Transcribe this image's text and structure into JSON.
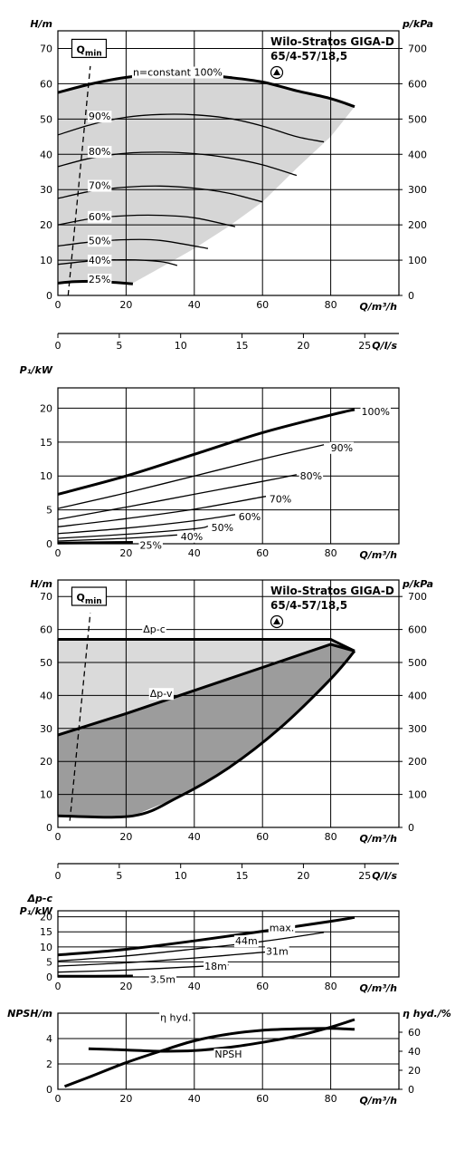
{
  "chart_data": [
    {
      "type": "line",
      "panel": "H-Q",
      "title": "Wilo-Stratos GIGA-D",
      "subtitle": "65/4-57/18,5",
      "ylabel": "H/m",
      "y2label": "p/kPa",
      "xlabel": "Q/m³/h",
      "xlim": [
        0,
        100
      ],
      "ylim": [
        0,
        75
      ],
      "y2lim": [
        0,
        750
      ],
      "xticks": [
        0,
        20,
        40,
        60,
        80
      ],
      "yticks": [
        0,
        10,
        20,
        30,
        40,
        50,
        60,
        70
      ],
      "y2ticks": [
        0,
        100,
        200,
        300,
        400,
        500,
        600,
        700
      ],
      "qmin_label": "Q",
      "qmin_sub": "min",
      "qmin_line": [
        [
          3,
          0
        ],
        [
          9.5,
          65
        ]
      ],
      "envelope": [
        [
          0,
          57.5
        ],
        [
          10,
          60
        ],
        [
          20,
          61.8
        ],
        [
          30,
          62.6
        ],
        [
          40,
          62.6
        ],
        [
          50,
          61.8
        ],
        [
          60,
          60.5
        ],
        [
          70,
          58
        ],
        [
          80,
          55.8
        ],
        [
          87,
          53.5
        ],
        [
          80,
          45
        ],
        [
          70,
          36
        ],
        [
          60,
          26.5
        ],
        [
          50,
          19.5
        ],
        [
          40,
          13.3
        ],
        [
          30,
          7.8
        ],
        [
          22,
          3.5
        ],
        [
          0,
          3.5
        ]
      ],
      "series": [
        {
          "name": "n=constant 100%",
          "bold": true,
          "x": [
            0,
            10,
            20,
            30,
            40,
            50,
            60,
            70,
            80,
            87
          ],
          "y": [
            57.5,
            60,
            61.8,
            62.6,
            62.6,
            61.8,
            60.5,
            58,
            55.8,
            53.5
          ]
        },
        {
          "name": "90%",
          "x": [
            0,
            10,
            20,
            30,
            40,
            50,
            60,
            70,
            78
          ],
          "y": [
            45.5,
            48.5,
            50.5,
            51.3,
            51.2,
            50.2,
            48,
            45,
            43.5
          ]
        },
        {
          "name": "80%",
          "x": [
            0,
            10,
            20,
            30,
            40,
            50,
            60,
            70
          ],
          "y": [
            36.5,
            39,
            40.3,
            40.6,
            40.2,
            39,
            37,
            34
          ]
        },
        {
          "name": "70%",
          "x": [
            0,
            10,
            20,
            30,
            40,
            50,
            60
          ],
          "y": [
            27.5,
            29.6,
            30.7,
            31,
            30.4,
            29,
            26.5
          ]
        },
        {
          "name": "60%",
          "x": [
            0,
            10,
            20,
            30,
            40,
            52
          ],
          "y": [
            20,
            21.8,
            22.6,
            22.7,
            22,
            19.5
          ]
        },
        {
          "name": "50%",
          "x": [
            0,
            10,
            20,
            30,
            44
          ],
          "y": [
            14,
            15.2,
            15.8,
            15.6,
            13.3
          ]
        },
        {
          "name": "40%",
          "x": [
            0,
            10,
            20,
            30,
            35
          ],
          "y": [
            8.8,
            9.8,
            10.1,
            9.6,
            8.5
          ]
        },
        {
          "name": "25%",
          "bold": true,
          "x": [
            0,
            5,
            10,
            15,
            22
          ],
          "y": [
            3.5,
            3.9,
            4,
            3.8,
            3.3
          ]
        }
      ]
    },
    {
      "type": "axis",
      "panel": "Q l/s",
      "xlabel": "Q/l/s",
      "xticks": [
        0,
        5,
        10,
        15,
        20,
        25
      ],
      "xlim": [
        0,
        27.78
      ]
    },
    {
      "type": "line",
      "panel": "P1-Q",
      "ylabel": "P₁/kW",
      "xlabel": "Q/m³/h",
      "xlim": [
        0,
        100
      ],
      "ylim": [
        0,
        23
      ],
      "xticks": [
        0,
        20,
        40,
        60,
        80
      ],
      "yticks": [
        0,
        5,
        10,
        15,
        20
      ],
      "series": [
        {
          "name": "100%",
          "bold": true,
          "x": [
            0,
            20,
            40,
            60,
            80,
            87
          ],
          "y": [
            7.3,
            10,
            13.2,
            16.4,
            19,
            19.8
          ]
        },
        {
          "name": "90%",
          "x": [
            0,
            20,
            40,
            60,
            78
          ],
          "y": [
            5.2,
            7.5,
            10,
            12.5,
            14.6
          ]
        },
        {
          "name": "80%",
          "x": [
            0,
            20,
            40,
            60,
            70
          ],
          "y": [
            3.6,
            5.4,
            7.3,
            9.2,
            10.2
          ]
        },
        {
          "name": "70%",
          "x": [
            0,
            20,
            40,
            61
          ],
          "y": [
            2.5,
            3.7,
            5.1,
            7
          ]
        },
        {
          "name": "60%",
          "x": [
            0,
            20,
            40,
            52
          ],
          "y": [
            1.5,
            2.3,
            3.4,
            4.3
          ]
        },
        {
          "name": "50%",
          "x": [
            0,
            20,
            40,
            44
          ],
          "y": [
            0.8,
            1.4,
            2.2,
            2.6
          ]
        },
        {
          "name": "40%",
          "x": [
            0,
            20,
            35
          ],
          "y": [
            0.4,
            0.8,
            1.3
          ]
        },
        {
          "name": "25%",
          "bold": true,
          "x": [
            0,
            22
          ],
          "y": [
            0.1,
            0.2
          ]
        }
      ]
    },
    {
      "type": "area",
      "panel": "H-Q control",
      "title": "Wilo-Stratos GIGA-D",
      "subtitle": "65/4-57/18,5",
      "ylabel": "H/m",
      "y2label": "p/kPa",
      "xlabel": "Q/m³/h",
      "xlim": [
        0,
        100
      ],
      "ylim": [
        0,
        75
      ],
      "y2lim": [
        0,
        750
      ],
      "xticks": [
        0,
        20,
        40,
        60,
        80
      ],
      "yticks": [
        0,
        10,
        20,
        30,
        40,
        50,
        60,
        70
      ],
      "y2ticks": [
        0,
        100,
        200,
        300,
        400,
        500,
        600,
        700
      ],
      "qmin_label": "Q",
      "qmin_sub": "min",
      "qmin_line": [
        [
          3.5,
          2
        ],
        [
          9.5,
          65
        ]
      ],
      "dpc_label": "Δp-c",
      "dpv_label": "Δp-v",
      "dpc": {
        "x": [
          0,
          80,
          82,
          87
        ],
        "y": [
          57,
          57,
          56,
          53.5
        ]
      },
      "dpv": {
        "x": [
          0,
          20,
          40,
          60,
          80,
          87
        ],
        "y": [
          28,
          34.5,
          41.5,
          48.5,
          55.5,
          53.5
        ]
      },
      "lower": {
        "x": [
          0,
          22,
          35,
          50,
          65,
          80,
          87
        ],
        "y": [
          3.5,
          3.5,
          9,
          18,
          30,
          45,
          53.5
        ]
      }
    },
    {
      "type": "axis",
      "panel": "Q l/s 2",
      "xlabel": "Q/l/s",
      "xticks": [
        0,
        5,
        10,
        15,
        20,
        25
      ],
      "xlim": [
        0,
        27.78
      ]
    },
    {
      "type": "line",
      "panel": "P1-Q control",
      "ylabel_top": "Δp-c",
      "ylabel": "P₁/kW",
      "xlabel": "Q/m³/h",
      "xlim": [
        0,
        100
      ],
      "ylim": [
        0,
        22
      ],
      "xticks": [
        0,
        20,
        40,
        60,
        80
      ],
      "yticks": [
        0,
        5,
        10,
        15,
        20
      ],
      "series": [
        {
          "name": "max.",
          "bold": true,
          "x": [
            0,
            20,
            40,
            60,
            80,
            87
          ],
          "y": [
            7.3,
            9.2,
            12,
            15.2,
            18.5,
            19.8
          ]
        },
        {
          "name": "44m",
          "x": [
            0,
            20,
            40,
            60,
            78
          ],
          "y": [
            5.3,
            7,
            9.3,
            11.8,
            14.8
          ]
        },
        {
          "name": "31m",
          "x": [
            0,
            20,
            40,
            60,
            66
          ],
          "y": [
            3.6,
            4.7,
            6.3,
            8.2,
            8.8
          ]
        },
        {
          "name": "18m",
          "x": [
            0,
            20,
            40,
            50
          ],
          "y": [
            1.6,
            2.3,
            3.4,
            4
          ]
        },
        {
          "name": "3.5m",
          "bold": true,
          "x": [
            0,
            22
          ],
          "y": [
            0.2,
            0.3
          ]
        }
      ]
    },
    {
      "type": "line",
      "panel": "NPSH eta",
      "ylabel": "NPSH/m",
      "y2label": "η hyd./%",
      "xlabel": "Q/m³/h",
      "xlim": [
        0,
        100
      ],
      "ylim": [
        0,
        6
      ],
      "y2lim": [
        0,
        80
      ],
      "xticks": [
        0,
        20,
        40,
        60,
        80
      ],
      "yticks": [
        0,
        2,
        4
      ],
      "y2ticks": [
        0,
        20,
        40,
        60
      ],
      "series": [
        {
          "name": "η hyd.",
          "axis": "right",
          "x": [
            2,
            10,
            20,
            30,
            40,
            50,
            60,
            70,
            80,
            87
          ],
          "y": [
            3,
            14,
            28,
            40,
            51,
            58,
            62,
            63.5,
            64,
            63
          ]
        },
        {
          "name": "NPSH",
          "axis": "left",
          "x": [
            9,
            20,
            30,
            40,
            50,
            60,
            70,
            80,
            87
          ],
          "y": [
            3.2,
            3.1,
            3.0,
            3.05,
            3.3,
            3.7,
            4.2,
            4.9,
            5.5
          ]
        }
      ]
    }
  ]
}
